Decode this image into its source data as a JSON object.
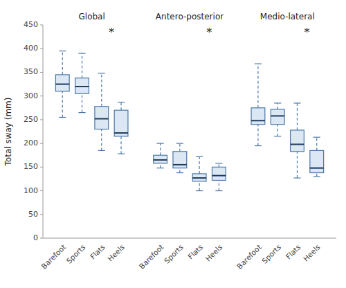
{
  "chart_data": {
    "type": "boxplot",
    "y_label": "Total sway (mm)",
    "ylim": [
      0,
      450
    ],
    "yticks": [
      0,
      50,
      100,
      150,
      200,
      250,
      300,
      350,
      400,
      450
    ],
    "grid": false,
    "categories": [
      "Barefoot",
      "Sports",
      "Flats",
      "Heels"
    ],
    "groups": [
      {
        "name": "Global",
        "annotation": "*",
        "boxes": [
          {
            "whislo": 255,
            "q1": 310,
            "med": 325,
            "q3": 345,
            "whishi": 395
          },
          {
            "whislo": 265,
            "q1": 305,
            "med": 320,
            "q3": 338,
            "whishi": 390
          },
          {
            "whislo": 185,
            "q1": 230,
            "med": 252,
            "q3": 278,
            "whishi": 348
          },
          {
            "whislo": 178,
            "q1": 215,
            "med": 222,
            "q3": 270,
            "whishi": 287
          }
        ]
      },
      {
        "name": "Antero-posterior",
        "annotation": "*",
        "boxes": [
          {
            "whislo": 148,
            "q1": 158,
            "med": 165,
            "q3": 175,
            "whishi": 200
          },
          {
            "whislo": 138,
            "q1": 148,
            "med": 155,
            "q3": 183,
            "whishi": 200
          },
          {
            "whislo": 100,
            "q1": 120,
            "med": 127,
            "q3": 136,
            "whishi": 172
          },
          {
            "whislo": 100,
            "q1": 122,
            "med": 132,
            "q3": 150,
            "whishi": 158
          }
        ]
      },
      {
        "name": "Medio-lateral",
        "annotation": "*",
        "boxes": [
          {
            "whislo": 195,
            "q1": 240,
            "med": 248,
            "q3": 275,
            "whishi": 368
          },
          {
            "whislo": 215,
            "q1": 240,
            "med": 258,
            "q3": 272,
            "whishi": 285
          },
          {
            "whislo": 127,
            "q1": 183,
            "med": 198,
            "q3": 228,
            "whishi": 285
          },
          {
            "whislo": 130,
            "q1": 138,
            "med": 148,
            "q3": 185,
            "whishi": 213
          }
        ]
      }
    ]
  }
}
